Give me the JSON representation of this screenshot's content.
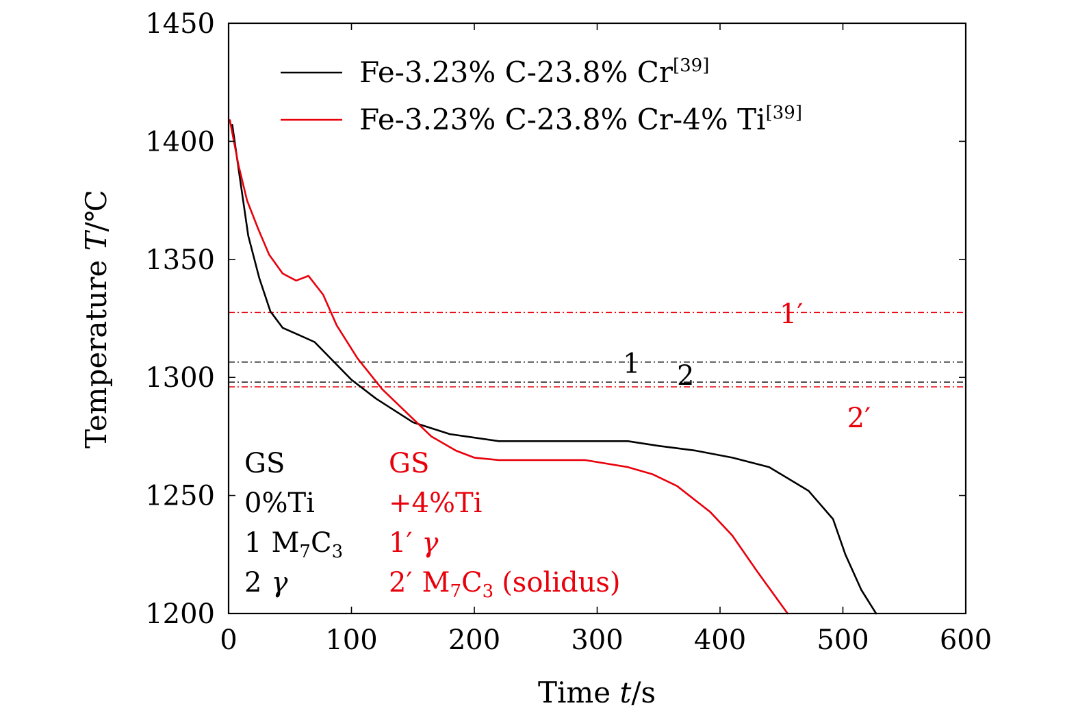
{
  "chart_data": {
    "type": "line",
    "xlabel": {
      "text": "Time ",
      "var": "t",
      "unit": "/s"
    },
    "ylabel": {
      "text": "Temperature ",
      "var": "T",
      "unit": "/℃"
    },
    "xlim": [
      0,
      600
    ],
    "ylim": [
      1200,
      1450
    ],
    "xticks": [
      0,
      100,
      200,
      300,
      400,
      500,
      600
    ],
    "yticks": [
      1200,
      1250,
      1300,
      1350,
      1400,
      1450
    ],
    "xtick_labels": [
      "0",
      "100",
      "200",
      "300",
      "400",
      "500",
      "600"
    ],
    "ytick_labels": [
      "1200",
      "1250",
      "1300",
      "1350",
      "1400",
      "1450"
    ],
    "colors": {
      "black": "#000000",
      "red": "#e8000b"
    },
    "legend_position": "top-center",
    "series": [
      {
        "name": "Fe-3.23% C-23.8% Cr",
        "ref": "[39]",
        "color": "#000000",
        "x": [
          3,
          9,
          16,
          25,
          34,
          44,
          57,
          70,
          85,
          100,
          120,
          150,
          180,
          220,
          250,
          300,
          325,
          350,
          380,
          410,
          440,
          472,
          492,
          502,
          515,
          527
        ],
        "y": [
          1407,
          1385,
          1360,
          1342,
          1328,
          1321,
          1318,
          1315,
          1307,
          1299,
          1291,
          1281,
          1276,
          1273,
          1273,
          1273,
          1273,
          1271,
          1269,
          1266,
          1262,
          1252,
          1240,
          1225,
          1210,
          1200
        ]
      },
      {
        "name": "Fe-3.23% C-23.8% Cr-4% Ti",
        "ref": "[39]",
        "color": "#e8000b",
        "x": [
          1,
          8,
          15,
          24,
          33,
          44,
          55,
          65,
          77,
          88,
          105,
          125,
          145,
          165,
          185,
          200,
          220,
          250,
          290,
          325,
          345,
          365,
          392,
          410,
          430,
          455
        ],
        "y": [
          1409,
          1390,
          1375,
          1363,
          1352,
          1344,
          1341,
          1343,
          1335,
          1322,
          1308,
          1295,
          1285,
          1275,
          1269,
          1266,
          1265,
          1265,
          1265,
          1262,
          1259,
          1254,
          1243,
          1233,
          1218,
          1200
        ]
      }
    ],
    "reference_lines": [
      {
        "id": "1'",
        "label": "1′",
        "y": 1327.5,
        "color": "#e8000b",
        "label_x": 458,
        "label_y": 1327
      },
      {
        "id": "1",
        "label": "1",
        "y": 1306.5,
        "color": "#000000",
        "label_x": 328,
        "label_y": 1306
      },
      {
        "id": "2",
        "label": "2",
        "y": 1298,
        "color": "#000000",
        "label_x": 372,
        "label_y": 1301
      },
      {
        "id": "2'",
        "label": "2′",
        "y": 1296,
        "color": "#e8000b",
        "label_x": 513,
        "label_y": 1283
      }
    ],
    "notes": {
      "black": {
        "line1": "GS",
        "line2": "0%Ti",
        "line3_num": "1",
        "line3_phase": "M",
        "line3_sub1": "7",
        "line3_c": "C",
        "line3_sub2": "3",
        "line4_num": "2",
        "line4_phase": "γ"
      },
      "red": {
        "line1": "GS",
        "line2": "+4%Ti",
        "line3_num": "1′",
        "line3_phase": "γ",
        "line4_num": "2′",
        "line4_phase": "M",
        "line4_sub1": "7",
        "line4_c": "C",
        "line4_sub2": "3",
        "line4_extra": "(solidus)"
      }
    }
  }
}
